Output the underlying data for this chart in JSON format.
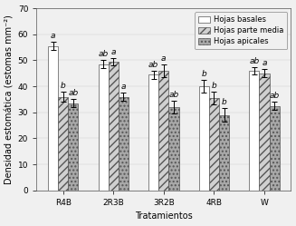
{
  "categories": [
    "R4B",
    "2R3B",
    "3R2B",
    "4RB",
    "W"
  ],
  "series": [
    {
      "name": "Hojas basales",
      "values": [
        55.5,
        48.5,
        44.5,
        40.0,
        46.0
      ],
      "errors": [
        1.5,
        1.5,
        1.5,
        2.5,
        1.5
      ],
      "hatch": "",
      "facecolor": "#ffffff",
      "edgecolor": "#555555",
      "labels": [
        "a",
        "ab",
        "ab",
        "b",
        "ab"
      ],
      "label_offsets": [
        0,
        0,
        0,
        0,
        0
      ]
    },
    {
      "name": "Hojas parte media",
      "values": [
        36.0,
        49.5,
        46.0,
        35.5,
        45.0
      ],
      "errors": [
        2.0,
        1.5,
        2.5,
        2.5,
        1.5
      ],
      "hatch": "////",
      "facecolor": "#d0d0d0",
      "edgecolor": "#555555",
      "labels": [
        "b",
        "a",
        "a",
        "b",
        "a"
      ],
      "label_offsets": [
        0,
        0,
        0,
        0,
        0
      ]
    },
    {
      "name": "Hojas apicales",
      "values": [
        33.5,
        36.0,
        32.0,
        29.0,
        32.5
      ],
      "errors": [
        1.5,
        1.5,
        2.5,
        2.5,
        1.5
      ],
      "hatch": "....",
      "facecolor": "#a8a8a8",
      "edgecolor": "#555555",
      "labels": [
        "ab",
        "a",
        "ab",
        "b",
        "ab"
      ],
      "label_offsets": [
        0,
        0,
        0,
        0,
        0
      ]
    }
  ],
  "ylabel": "Densidad estomática (estomas mm⁻²)",
  "xlabel": "Tratamientos",
  "ylim": [
    0,
    70
  ],
  "yticks": [
    0,
    10,
    20,
    30,
    40,
    50,
    60,
    70
  ],
  "axis_fontsize": 7,
  "tick_fontsize": 6.5,
  "label_fontsize": 6.5,
  "legend_fontsize": 6,
  "bar_width": 0.2,
  "background_color": "#f0f0f0"
}
